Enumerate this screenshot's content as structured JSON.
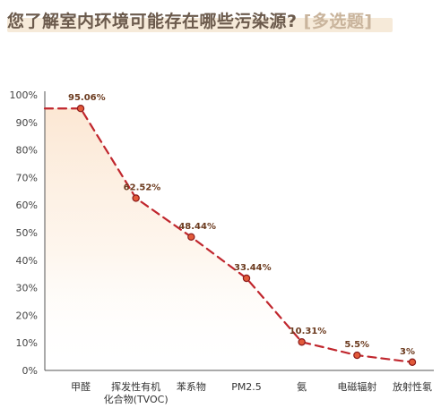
{
  "header": {
    "title": "您了解室内环境可能存在哪些污染源?",
    "tag": "[多选题]"
  },
  "chart_data": {
    "type": "line",
    "title": "您了解室内环境可能存在哪些污染源? [多选题]",
    "categories": [
      [
        "甲醛"
      ],
      [
        "挥发性有机",
        "化合物(TVOC)"
      ],
      [
        "苯系物"
      ],
      [
        "PM2.5"
      ],
      [
        "氨"
      ],
      [
        "电磁辐射"
      ],
      [
        "放射性氡"
      ]
    ],
    "values": [
      95.06,
      62.52,
      48.44,
      33.44,
      10.31,
      5.5,
      3
    ],
    "value_labels": [
      "95.06%",
      "62.52%",
      "48.44%",
      "33.44%",
      "10.31%",
      "5.5%",
      "3%"
    ],
    "y_ticks": [
      "0%",
      "10%",
      "20%",
      "30%",
      "40%",
      "50%",
      "60%",
      "70%",
      "80%",
      "90%",
      "100%"
    ],
    "ylim": [
      0,
      100
    ],
    "grid": false,
    "colors": {
      "line": "#c0262d",
      "marker_fill": "#e25a3a",
      "marker_stroke": "#8a1a1a",
      "area_top": "#fbe3cc",
      "area_bottom": "#ffffff",
      "axis": "#555555"
    }
  }
}
